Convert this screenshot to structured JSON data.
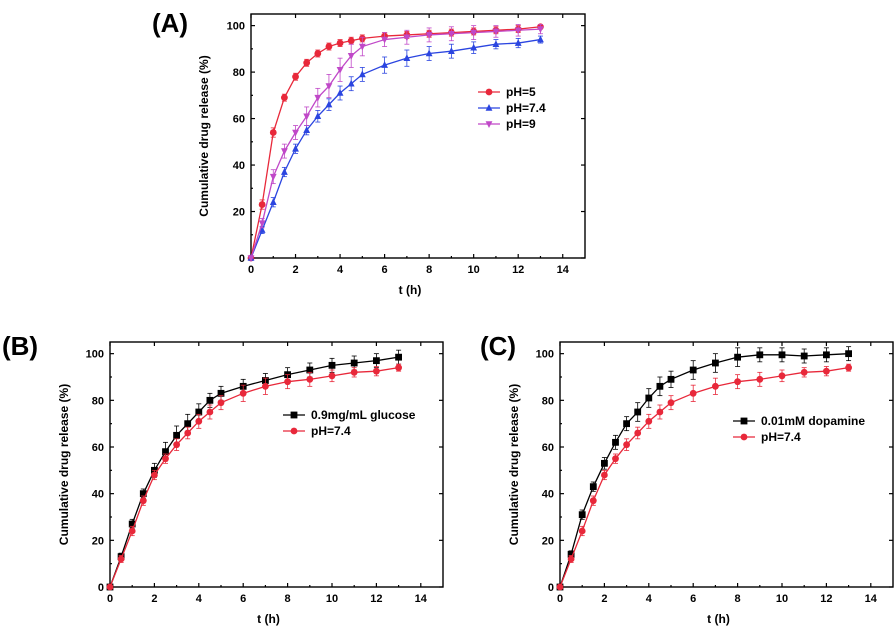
{
  "chart_data": [
    {
      "panel_label": "(A)",
      "type": "line",
      "xlabel": "t (h)",
      "ylabel": "Cumulative drug release (%)",
      "xlim": [
        0,
        15
      ],
      "ylim": [
        0,
        105
      ],
      "xticks": [
        0,
        2,
        4,
        6,
        8,
        10,
        12,
        14
      ],
      "yticks": [
        0,
        20,
        40,
        60,
        80,
        100
      ],
      "legend_position": "right-middle",
      "grid": false,
      "series": [
        {
          "name": "pH=5",
          "color": "#e8283a",
          "marker": "circle",
          "x": [
            0,
            0.5,
            1,
            1.5,
            2,
            2.5,
            3,
            3.5,
            4,
            4.5,
            5,
            6,
            7,
            8,
            9,
            10,
            11,
            12,
            13
          ],
          "y": [
            0,
            23,
            54,
            69,
            78,
            84,
            88,
            91,
            92.5,
            93.5,
            94.5,
            95.5,
            96,
            96.5,
            97,
            97.5,
            98,
            98.5,
            99.5
          ],
          "err": [
            0,
            2,
            2,
            1.5,
            1.5,
            1.5,
            1.5,
            1.5,
            1.5,
            1.5,
            1.5,
            1.5,
            1.5,
            1.5,
            1.5,
            1.5,
            1.5,
            1.5,
            1
          ]
        },
        {
          "name": "pH=7.4",
          "color": "#2b45e0",
          "marker": "triangle-up",
          "x": [
            0,
            0.5,
            1,
            1.5,
            2,
            2.5,
            3,
            3.5,
            4,
            4.5,
            5,
            6,
            7,
            8,
            9,
            10,
            11,
            12,
            13
          ],
          "y": [
            0,
            12,
            24,
            37,
            47,
            55,
            61,
            66,
            71,
            75,
            79,
            83,
            86,
            88,
            89,
            90.5,
            92,
            92.5,
            94
          ],
          "err": [
            0,
            1.5,
            2,
            2,
            2,
            2,
            2.5,
            2.5,
            3,
            3,
            3,
            3.5,
            3.5,
            3,
            3,
            2.5,
            2,
            2,
            1.5
          ]
        },
        {
          "name": "pH=9",
          "color": "#c048c8",
          "marker": "triangle-down",
          "x": [
            0,
            0.5,
            1,
            1.5,
            2,
            2.5,
            3,
            3.5,
            4,
            4.5,
            5,
            6,
            7,
            8,
            9,
            10,
            11,
            12,
            13
          ],
          "y": [
            0,
            15,
            35,
            46,
            54,
            61,
            69,
            74,
            81,
            87,
            91,
            94,
            95,
            96,
            96.5,
            97,
            97.5,
            98,
            98.5
          ],
          "err": [
            0,
            2,
            3,
            3,
            3,
            4,
            4,
            5,
            5,
            5,
            4,
            3,
            3,
            3,
            3,
            3,
            2.5,
            2.5,
            2
          ]
        }
      ]
    },
    {
      "panel_label": "(B)",
      "type": "line",
      "xlabel": "t (h)",
      "ylabel": "Cumulative drug release (%)",
      "xlim": [
        0,
        15
      ],
      "ylim": [
        0,
        105
      ],
      "xticks": [
        0,
        2,
        4,
        6,
        8,
        10,
        12,
        14
      ],
      "yticks": [
        0,
        20,
        40,
        60,
        80,
        100
      ],
      "legend_position": "right-middle",
      "grid": false,
      "series": [
        {
          "name": "0.9mg/mL glucose",
          "color": "#000000",
          "marker": "square",
          "x": [
            0,
            0.5,
            1,
            1.5,
            2,
            2.5,
            3,
            3.5,
            4,
            4.5,
            5,
            6,
            7,
            8,
            9,
            10,
            11,
            12,
            13
          ],
          "y": [
            0,
            13,
            27,
            40,
            50,
            58,
            65,
            70,
            75,
            80,
            83,
            86,
            88.5,
            91,
            93,
            95,
            96,
            97,
            98.5
          ],
          "err": [
            0,
            1.5,
            2,
            2,
            3,
            4,
            4,
            4,
            3.5,
            3,
            3,
            3,
            3,
            3,
            3,
            3,
            3,
            3,
            3
          ]
        },
        {
          "name": "pH=7.4",
          "color": "#e8283a",
          "marker": "circle",
          "x": [
            0,
            0.5,
            1,
            1.5,
            2,
            2.5,
            3,
            3.5,
            4,
            4.5,
            5,
            6,
            7,
            8,
            9,
            10,
            11,
            12,
            13
          ],
          "y": [
            0,
            12,
            24,
            37,
            48,
            55,
            61,
            66,
            71,
            75,
            79,
            83,
            86,
            88,
            89,
            90.5,
            92,
            92.5,
            94
          ],
          "err": [
            0,
            1.5,
            2,
            2,
            2,
            2,
            2.5,
            2.5,
            3,
            3,
            3,
            3.5,
            3.5,
            3,
            3,
            2.5,
            2,
            2,
            1.5
          ]
        }
      ]
    },
    {
      "panel_label": "(C)",
      "type": "line",
      "xlabel": "t (h)",
      "ylabel": "Cumulative drug release (%)",
      "xlim": [
        0,
        15
      ],
      "ylim": [
        0,
        105
      ],
      "xticks": [
        0,
        2,
        4,
        6,
        8,
        10,
        12,
        14
      ],
      "yticks": [
        0,
        20,
        40,
        60,
        80,
        100
      ],
      "legend_position": "right-middle",
      "grid": false,
      "series": [
        {
          "name": "0.01mM dopamine",
          "color": "#000000",
          "marker": "square",
          "x": [
            0,
            0.5,
            1,
            1.5,
            2,
            2.5,
            3,
            3.5,
            4,
            4.5,
            5,
            6,
            7,
            8,
            9,
            10,
            11,
            12,
            13
          ],
          "y": [
            0,
            14,
            31,
            43,
            53,
            62,
            70,
            75,
            81,
            86,
            89,
            93,
            96,
            98.5,
            99.5,
            99.5,
            99,
            99.5,
            100
          ],
          "err": [
            0,
            1.5,
            2,
            2,
            2.5,
            3,
            3,
            4,
            4,
            4,
            3.5,
            4,
            4,
            4,
            3,
            3,
            3,
            3,
            3
          ]
        },
        {
          "name": "pH=7.4",
          "color": "#e8283a",
          "marker": "circle",
          "x": [
            0,
            0.5,
            1,
            1.5,
            2,
            2.5,
            3,
            3.5,
            4,
            4.5,
            5,
            6,
            7,
            8,
            9,
            10,
            11,
            12,
            13
          ],
          "y": [
            0,
            12,
            24,
            37,
            48,
            55,
            61,
            66,
            71,
            75,
            79,
            83,
            86,
            88,
            89,
            90.5,
            92,
            92.5,
            94
          ],
          "err": [
            0,
            1.5,
            2,
            2,
            2,
            2,
            2.5,
            2.5,
            3,
            3,
            3,
            3.5,
            3.5,
            3,
            3,
            2.5,
            2,
            2,
            1.5
          ]
        }
      ]
    }
  ]
}
